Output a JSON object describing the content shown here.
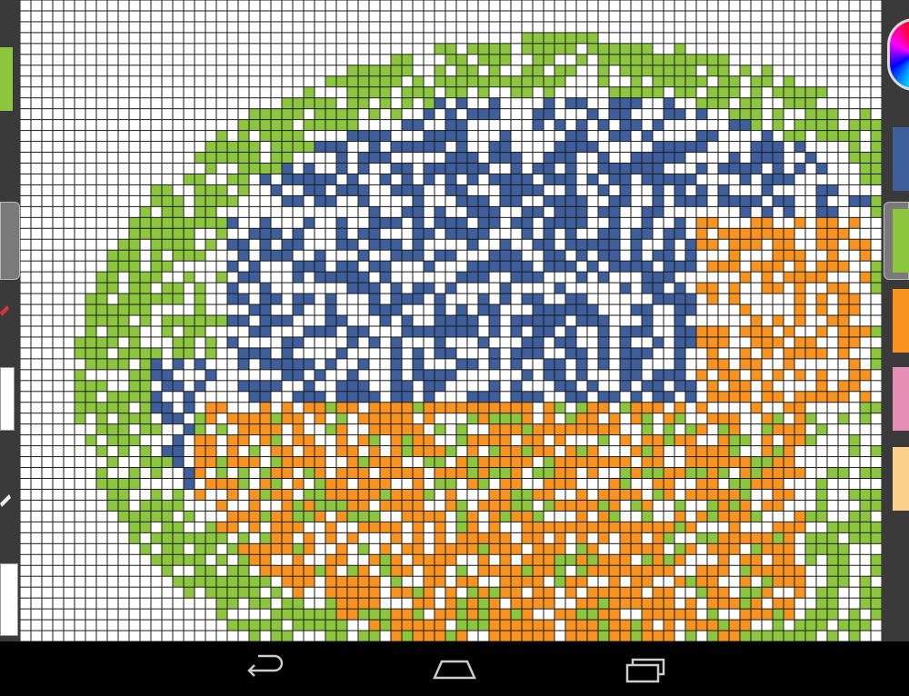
{
  "palette": {
    "green": "#8cc63f",
    "blue": "#3e5e9c",
    "orange": "#f7931e",
    "pink": "#e58fb6",
    "peach": "#fbd08a",
    "cyan": "#1e90d8",
    "white": "#ffffff"
  },
  "grid": {
    "cols": 79,
    "rows": 59
  },
  "left_toolbar": {
    "active_color": "#8cc63f",
    "tools": [
      "brush-icon",
      "pencil-icon",
      "grid-icon",
      "eraser-icon",
      "grid-small-icon"
    ]
  },
  "right_toolbar": {
    "swatches": [
      {
        "name": "blue",
        "color": "#3e5e9c"
      },
      {
        "name": "green",
        "color": "#8cc63f",
        "selected": true
      },
      {
        "name": "orange",
        "color": "#f7931e"
      },
      {
        "name": "pink",
        "color": "#e58fb6"
      },
      {
        "name": "peach",
        "color": "#fbd08a"
      }
    ]
  },
  "navbar": {
    "buttons": [
      "back-icon",
      "home-icon",
      "recents-icon"
    ]
  }
}
